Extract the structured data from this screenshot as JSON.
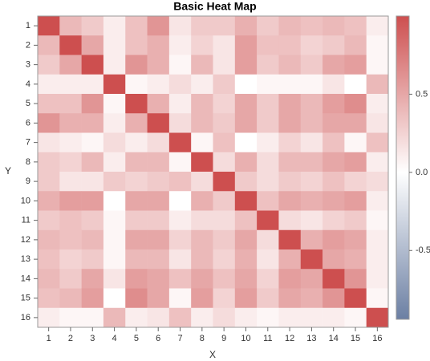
{
  "chart_data": {
    "type": "heatmap",
    "title": "Basic Heat Map",
    "x_label": "X",
    "y_label": "Y",
    "x": [
      1,
      2,
      3,
      4,
      5,
      6,
      7,
      8,
      9,
      10,
      11,
      12,
      13,
      14,
      15,
      16
    ],
    "y": [
      1,
      2,
      3,
      4,
      5,
      6,
      7,
      8,
      9,
      10,
      11,
      12,
      13,
      14,
      15,
      16
    ],
    "values": [
      [
        1,
        0.4,
        0.3,
        0.1,
        0.35,
        0.6,
        0.15,
        0.3,
        0.3,
        0.45,
        0.3,
        0.4,
        0.35,
        0.4,
        0.35,
        0.1
      ],
      [
        0.4,
        1,
        0.5,
        0.1,
        0.35,
        0.45,
        0.1,
        0.25,
        0.15,
        0.55,
        0.35,
        0.35,
        0.25,
        0.3,
        0.4,
        0.05
      ],
      [
        0.3,
        0.5,
        1,
        0.1,
        0.6,
        0.45,
        0.05,
        0.4,
        0.15,
        0.55,
        0.3,
        0.4,
        0.3,
        0.5,
        0.55,
        0.05
      ],
      [
        0.1,
        0.1,
        0.1,
        1,
        0.05,
        0.1,
        0.2,
        0.1,
        0.3,
        0,
        0.05,
        0.05,
        0.05,
        0.15,
        0,
        0.4
      ],
      [
        0.35,
        0.35,
        0.6,
        0.05,
        1,
        0.45,
        0.1,
        0.4,
        0.25,
        0.5,
        0.3,
        0.5,
        0.4,
        0.55,
        0.65,
        0.1
      ],
      [
        0.6,
        0.45,
        0.45,
        0.1,
        0.45,
        1,
        0.2,
        0.4,
        0.3,
        0.5,
        0.3,
        0.5,
        0.4,
        0.5,
        0.5,
        0.15
      ],
      [
        0.15,
        0.1,
        0.05,
        0.2,
        0.1,
        0.2,
        1,
        0.05,
        0.35,
        0,
        0.1,
        0.25,
        0.15,
        0.35,
        0.05,
        0.35
      ],
      [
        0.3,
        0.25,
        0.4,
        0.1,
        0.4,
        0.4,
        0.05,
        1,
        0.2,
        0.45,
        0.2,
        0.4,
        0.4,
        0.5,
        0.55,
        0.1
      ],
      [
        0.3,
        0.15,
        0.15,
        0.3,
        0.25,
        0.3,
        0.35,
        0.2,
        1,
        0.3,
        0.2,
        0.3,
        0.25,
        0.35,
        0.25,
        0.2
      ],
      [
        0.45,
        0.55,
        0.55,
        0,
        0.5,
        0.5,
        0,
        0.45,
        0.3,
        1,
        0.35,
        0.5,
        0.45,
        0.5,
        0.55,
        0.1
      ],
      [
        0.3,
        0.35,
        0.3,
        0.05,
        0.3,
        0.3,
        0.1,
        0.2,
        0.2,
        0.35,
        1,
        0.2,
        0.15,
        0.25,
        0.3,
        0.05
      ],
      [
        0.4,
        0.35,
        0.4,
        0.05,
        0.5,
        0.5,
        0.25,
        0.4,
        0.3,
        0.5,
        0.2,
        1,
        0.45,
        0.55,
        0.5,
        0.1
      ],
      [
        0.35,
        0.25,
        0.3,
        0.05,
        0.4,
        0.4,
        0.15,
        0.4,
        0.25,
        0.45,
        0.15,
        0.45,
        1,
        0.5,
        0.45,
        0.1
      ],
      [
        0.4,
        0.3,
        0.5,
        0.15,
        0.55,
        0.5,
        0.35,
        0.5,
        0.35,
        0.5,
        0.25,
        0.55,
        0.5,
        1,
        0.6,
        0.1
      ],
      [
        0.35,
        0.4,
        0.55,
        0,
        0.65,
        0.5,
        0.05,
        0.55,
        0.25,
        0.55,
        0.3,
        0.5,
        0.45,
        0.6,
        1,
        0.05
      ],
      [
        0.1,
        0.05,
        0.05,
        0.4,
        0.1,
        0.15,
        0.35,
        0.1,
        0.2,
        0.1,
        0.05,
        0.1,
        0.1,
        0.1,
        0.05,
        1
      ]
    ],
    "zlim": [
      -0.94,
      1.0
    ],
    "zticks": [
      -0.5,
      {
        "value": 0,
        "label": "0.0"
      },
      0.5
    ],
    "colors": {
      "low": "#6b7fa3",
      "mid": "#ffffff",
      "high": "#cd4f4f"
    }
  }
}
